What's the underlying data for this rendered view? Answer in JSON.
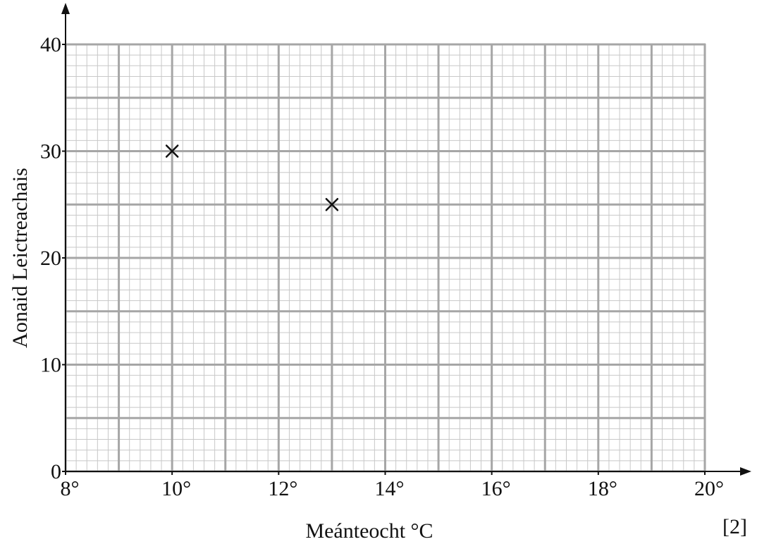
{
  "chart_data": {
    "type": "scatter",
    "title": "",
    "xlabel": "Meánteocht °C",
    "ylabel": "Aonaid Leictreachais",
    "xlim": [
      8,
      20
    ],
    "ylim": [
      0,
      40
    ],
    "x_ticks": [
      "8°",
      "10°",
      "12°",
      "14°",
      "16°",
      "18°",
      "20°"
    ],
    "x_tick_values": [
      8,
      10,
      12,
      14,
      16,
      18,
      20
    ],
    "y_ticks": [
      "0",
      "10",
      "20",
      "30",
      "40"
    ],
    "y_tick_values": [
      0,
      10,
      20,
      30,
      40
    ],
    "grid": true,
    "grid_major_x_step": 1,
    "grid_major_y_step": 5,
    "grid_minor_x_step": 0.2,
    "grid_minor_y_step": 1,
    "marker": "x",
    "points": [
      {
        "x": 10,
        "y": 30
      },
      {
        "x": 13,
        "y": 25
      }
    ],
    "marks_label": "[2]",
    "colors": {
      "grid_minor": "#c8c8c8",
      "grid_major": "#a6a6a6",
      "axis": "#111111",
      "marker": "#111111"
    }
  }
}
